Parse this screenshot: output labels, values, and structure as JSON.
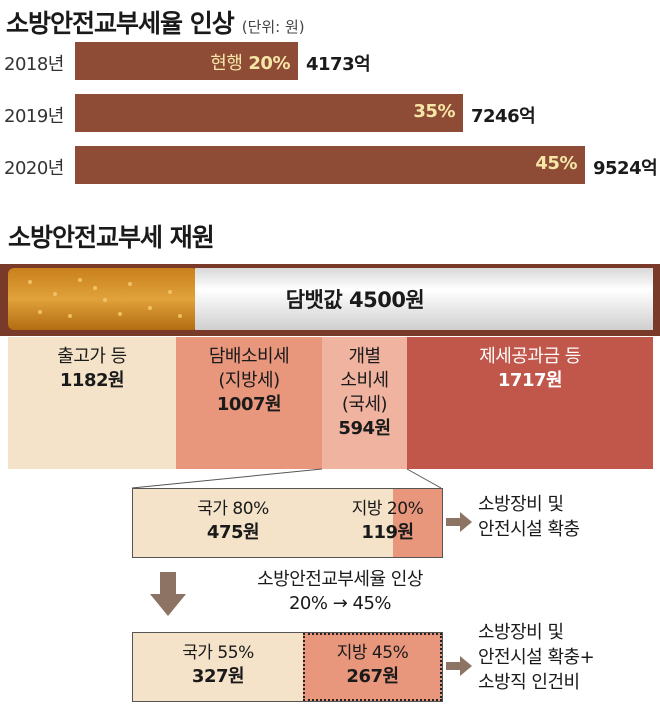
{
  "title": "소방안전교부세율 인상",
  "unit_note": "(단위: 원)",
  "rate_chart": {
    "chart_data": {
      "type": "bar",
      "categories": [
        "2018년",
        "2019년",
        "2020년"
      ],
      "values": [
        4173,
        7246,
        9524
      ],
      "value_labels": [
        "4173억",
        "7246억",
        "9524억"
      ],
      "rate_labels": [
        "20%",
        "35%",
        "45%"
      ],
      "rate_prefix": "현행",
      "rates": [
        20,
        35,
        45
      ]
    }
  },
  "colors": {
    "bar": "#8e4b36",
    "bar_text": "#f6e6a8",
    "seg1": "#f4e3c9",
    "seg2": "#e8967c",
    "seg3": "#f0b3a0",
    "seg4": "#c0574a",
    "local": "#e8967c",
    "arrow": "#8c7364"
  },
  "section2_title": "소방안전교부세 재원",
  "cigarette": {
    "label": "담뱃값 4500원"
  },
  "segments": [
    {
      "line1": "출고가 등",
      "amount": "1182원",
      "value": 1182
    },
    {
      "line1": "담배소비세",
      "line2": "(지방세)",
      "amount": "1007원",
      "value": 1007
    },
    {
      "line1": "개별",
      "line2": "소비세",
      "line3": "(국세)",
      "amount": "594원",
      "value": 594
    },
    {
      "line1": "제세공과금 등",
      "amount": "1717원",
      "value": 1717
    }
  ],
  "before": {
    "national": {
      "label": "국가 80%",
      "amount": "475원"
    },
    "local": {
      "label": "지방 20%",
      "amount": "119원"
    },
    "note": [
      "소방장비 및",
      "안전시설 확충"
    ]
  },
  "change": {
    "line1": "소방안전교부세율 인상",
    "line2": "20% → 45%"
  },
  "after": {
    "national": {
      "label": "국가 55%",
      "amount": "327원"
    },
    "local": {
      "label": "지방 45%",
      "amount": "267원"
    },
    "note": [
      "소방장비 및",
      "안전시설 확충+",
      "소방직 인건비"
    ]
  }
}
